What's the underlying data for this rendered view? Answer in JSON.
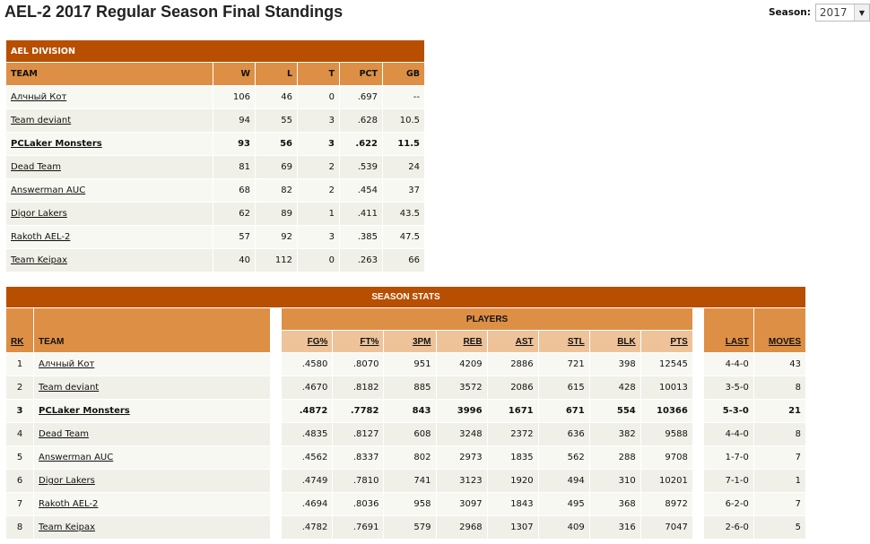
{
  "page": {
    "title": "AEL-2 2017 Regular Season Final Standings",
    "season_label": "Season:",
    "season_value": "2017"
  },
  "division": {
    "title": "AEL DIVISION",
    "columns": [
      "TEAM",
      "W",
      "L",
      "T",
      "PCT",
      "GB"
    ],
    "rows": [
      [
        "Алчный Кот",
        "106",
        "46",
        "0",
        ".697",
        "--"
      ],
      [
        "Team deviant",
        "94",
        "55",
        "3",
        ".628",
        "10.5"
      ],
      [
        "PCLaker Monsters",
        "93",
        "56",
        "3",
        ".622",
        "11.5"
      ],
      [
        "Dead Team",
        "81",
        "69",
        "2",
        ".539",
        "24"
      ],
      [
        "Answerman AUC",
        "68",
        "82",
        "2",
        ".454",
        "37"
      ],
      [
        "Digor Lakers",
        "62",
        "89",
        "1",
        ".411",
        "43.5"
      ],
      [
        "Rakoth AEL-2",
        "57",
        "92",
        "3",
        ".385",
        "47.5"
      ],
      [
        "Team Keipax",
        "40",
        "112",
        "0",
        ".263",
        "66"
      ]
    ],
    "highlight_row": 2
  },
  "stats": {
    "title": "SEASON STATS",
    "group": "PLAYERS",
    "rk": "RK",
    "team": "TEAM",
    "columns": [
      "FG%",
      "FT%",
      "3PM",
      "REB",
      "AST",
      "STL",
      "BLK",
      "PTS"
    ],
    "last": "LAST",
    "moves": "MOVES",
    "rows": [
      [
        "1",
        "Алчный Кот",
        ".4580",
        ".8070",
        "951",
        "4209",
        "2886",
        "721",
        "398",
        "12545",
        "4-4-0",
        "43"
      ],
      [
        "2",
        "Team deviant",
        ".4670",
        ".8182",
        "885",
        "3572",
        "2086",
        "615",
        "428",
        "10013",
        "3-5-0",
        "8"
      ],
      [
        "3",
        "PCLaker Monsters",
        ".4872",
        ".7782",
        "843",
        "3996",
        "1671",
        "671",
        "554",
        "10366",
        "5-3-0",
        "21"
      ],
      [
        "4",
        "Dead Team",
        ".4835",
        ".8127",
        "608",
        "3248",
        "2372",
        "636",
        "382",
        "9588",
        "4-4-0",
        "8"
      ],
      [
        "5",
        "Answerman AUC",
        ".4562",
        ".8337",
        "802",
        "2973",
        "1835",
        "562",
        "288",
        "9708",
        "1-7-0",
        "7"
      ],
      [
        "6",
        "Digor Lakers",
        ".4749",
        ".7810",
        "741",
        "3123",
        "1920",
        "494",
        "310",
        "10201",
        "7-1-0",
        "1"
      ],
      [
        "7",
        "Rakoth AEL-2",
        ".4694",
        ".8036",
        "958",
        "3097",
        "1843",
        "495",
        "368",
        "8972",
        "6-2-0",
        "7"
      ],
      [
        "8",
        "Team Keipax",
        ".4782",
        ".7691",
        "579",
        "2968",
        "1307",
        "409",
        "316",
        "7047",
        "2-6-0",
        "5"
      ]
    ],
    "highlight_row": 2
  },
  "colors": {
    "title_bg": "#b84e00",
    "header_bg": "#dd8f45",
    "subheader_bg": "#eec39a"
  }
}
